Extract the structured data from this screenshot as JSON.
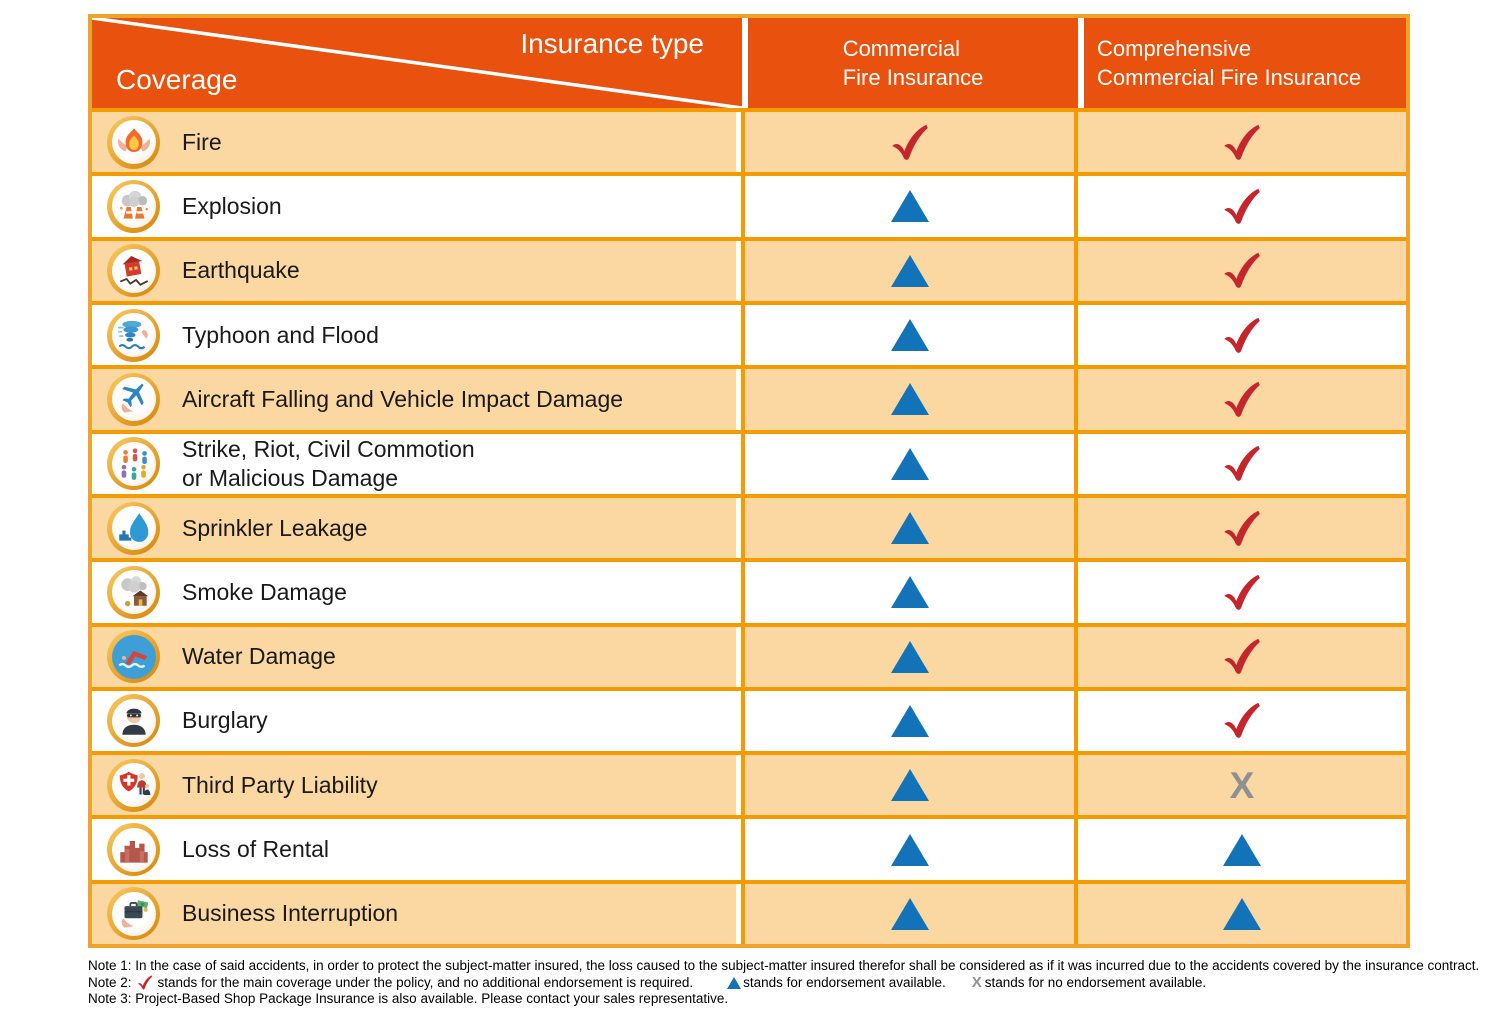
{
  "header": {
    "corner_top_right": "Insurance type",
    "corner_bottom_left": "Coverage",
    "col_commercial": "Commercial\nFire Insurance",
    "col_comprehensive": "Comprehensive\nCommercial Fire Insurance"
  },
  "symbols": {
    "cross_glyph": "X"
  },
  "rows": [
    {
      "icon": "fire-icon",
      "label": "Fire",
      "commercial": "check",
      "comprehensive": "check"
    },
    {
      "icon": "explosion-icon",
      "label": "Explosion",
      "commercial": "triangle",
      "comprehensive": "check"
    },
    {
      "icon": "earthquake-icon",
      "label": "Earthquake",
      "commercial": "triangle",
      "comprehensive": "check"
    },
    {
      "icon": "typhoon-flood-icon",
      "label": "Typhoon and Flood",
      "commercial": "triangle",
      "comprehensive": "check"
    },
    {
      "icon": "aircraft-impact-icon",
      "label": "Aircraft Falling and Vehicle Impact Damage",
      "commercial": "triangle",
      "comprehensive": "check"
    },
    {
      "icon": "riot-icon",
      "label": "Strike, Riot, Civil Commotion\nor Malicious Damage",
      "commercial": "triangle",
      "comprehensive": "check"
    },
    {
      "icon": "sprinkler-leakage-icon",
      "label": "Sprinkler Leakage",
      "commercial": "triangle",
      "comprehensive": "check"
    },
    {
      "icon": "smoke-damage-icon",
      "label": "Smoke Damage",
      "commercial": "triangle",
      "comprehensive": "check"
    },
    {
      "icon": "water-damage-icon",
      "label": "Water Damage",
      "commercial": "triangle",
      "comprehensive": "check"
    },
    {
      "icon": "burglary-icon",
      "label": "Burglary",
      "commercial": "triangle",
      "comprehensive": "check"
    },
    {
      "icon": "third-party-liability-icon",
      "label": "Third Party Liability",
      "commercial": "triangle",
      "comprehensive": "cross"
    },
    {
      "icon": "loss-of-rental-icon",
      "label": "Loss of Rental",
      "commercial": "triangle",
      "comprehensive": "triangle"
    },
    {
      "icon": "business-interruption-icon",
      "label": "Business Interruption",
      "commercial": "triangle",
      "comprehensive": "triangle"
    }
  ],
  "notes": {
    "note1": "Note 1: In the case of said accidents, in order to protect the subject-matter insured, the loss caused to the subject-matter insured therefor shall be considered as if it was incurred due to the accidents covered by the insurance contract.",
    "note2_prefix": "Note 2:",
    "note2_check": "stands for the main coverage under the policy, and no additional endorsement is required.",
    "note2_triangle": "stands for endorsement available.",
    "note2_cross": "stands for no endorsement available.",
    "note3": "Note 3: Project-Based Shop Package Insurance is also available. Please contact your sales representative."
  },
  "colors": {
    "header_orange": "#E8520E",
    "row_orange": "#FBD7A2",
    "grid_orange": "#F59A00",
    "outer_border": "#F0A32B",
    "check_red": "#C5252C",
    "triangle_blue": "#1273B8",
    "cross_gray": "#8E9194"
  }
}
